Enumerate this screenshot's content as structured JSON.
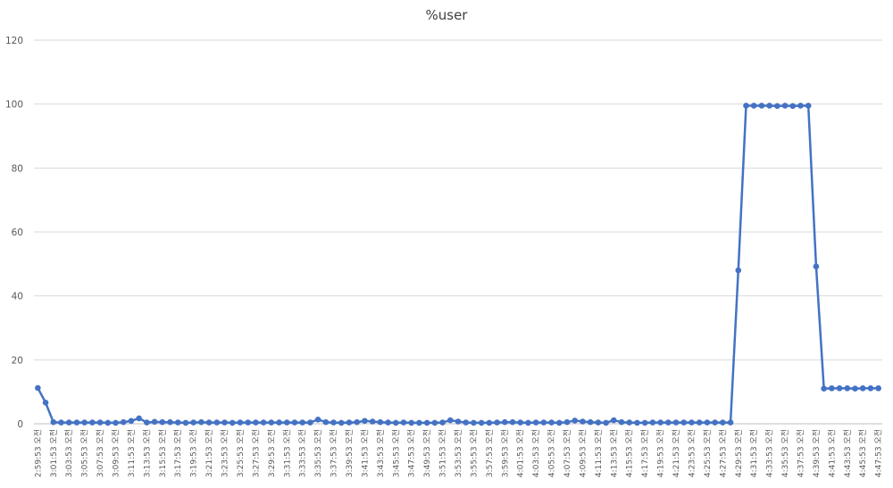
{
  "chart_data": {
    "type": "line",
    "title": "%user",
    "xlabel": "",
    "ylabel": "",
    "ylim": [
      0,
      120
    ],
    "yticks": [
      0,
      20,
      40,
      60,
      80,
      100,
      120
    ],
    "grid": true,
    "legend": "none",
    "series_color": "#4472C4",
    "x_labels": [
      "2:59:53 오전",
      "3:01:53 오전",
      "3:03:53 오전",
      "3:05:53 오전",
      "3:07:53 오전",
      "3:09:53 오전",
      "3:11:53 오전",
      "3:13:53 오전",
      "3:15:53 오전",
      "3:17:53 오전",
      "3:19:53 오전",
      "3:21:53 오전",
      "3:23:53 오전",
      "3:25:53 오전",
      "3:27:53 오전",
      "3:29:53 오전",
      "3:31:53 오전",
      "3:33:53 오전",
      "3:35:53 오전",
      "3:37:53 오전",
      "3:39:53 오전",
      "3:41:53 오전",
      "3:43:53 오전",
      "3:45:53 오전",
      "3:47:53 오전",
      "3:49:53 오전",
      "3:51:53 오전",
      "3:53:53 오전",
      "3:55:53 오전",
      "3:57:53 오전",
      "3:59:53 오전",
      "4:01:53 오전",
      "4:03:53 오전",
      "4:05:53 오전",
      "4:07:53 오전",
      "4:09:53 오전",
      "4:11:53 오전",
      "4:13:53 오전",
      "4:15:53 오전",
      "4:17:53 오전",
      "4:19:53 오전",
      "4:21:53 오전",
      "4:23:53 오전",
      "4:25:53 오전",
      "4:27:53 오전",
      "4:29:53 오전",
      "4:31:53 오전",
      "4:33:53 오전",
      "4:35:53 오전",
      "4:37:53 오전",
      "4:39:53 오전",
      "4:41:53 오전",
      "4:43:53 오전",
      "4:45:53 오전",
      "4:47:53 오전"
    ],
    "values": [
      11.2,
      6.6,
      0.5,
      0.4,
      0.4,
      0.4,
      0.4,
      0.4,
      0.4,
      0.3,
      0.3,
      0.5,
      0.9,
      1.7,
      0.4,
      0.6,
      0.5,
      0.5,
      0.4,
      0.3,
      0.4,
      0.5,
      0.4,
      0.4,
      0.4,
      0.3,
      0.4,
      0.4,
      0.4,
      0.4,
      0.4,
      0.4,
      0.4,
      0.4,
      0.4,
      0.4,
      1.3,
      0.5,
      0.4,
      0.3,
      0.4,
      0.5,
      0.9,
      0.7,
      0.5,
      0.4,
      0.3,
      0.4,
      0.3,
      0.3,
      0.3,
      0.3,
      0.4,
      1.1,
      0.7,
      0.4,
      0.3,
      0.3,
      0.3,
      0.4,
      0.5,
      0.5,
      0.4,
      0.3,
      0.4,
      0.4,
      0.4,
      0.3,
      0.5,
      1.0,
      0.7,
      0.5,
      0.4,
      0.3,
      1.1,
      0.5,
      0.4,
      0.3,
      0.3,
      0.4,
      0.4,
      0.4,
      0.4,
      0.4,
      0.4,
      0.4,
      0.4,
      0.4,
      0.4,
      0.4,
      48.0,
      99.5,
      99.5,
      99.5,
      99.5,
      99.4,
      99.5,
      99.4,
      99.5,
      99.5,
      49.2,
      11.0,
      11.1,
      11.1,
      11.1,
      11.0,
      11.1,
      11.1,
      11.1
    ]
  }
}
